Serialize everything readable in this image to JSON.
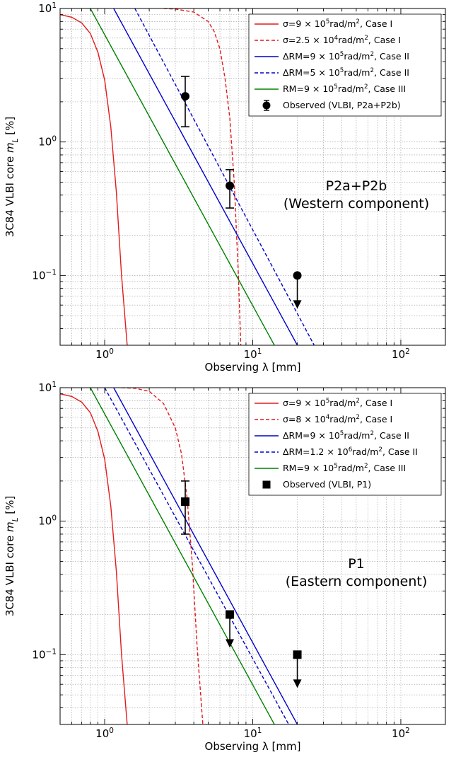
{
  "chart_data": [
    {
      "type": "line",
      "xlabel": "Observing λ [mm]",
      "ylabel": "3C84 VLBI core m_L [%]",
      "xscale": "log",
      "yscale": "log",
      "xlim": [
        0.5,
        200
      ],
      "ylim": [
        0.03,
        10
      ],
      "grid": true,
      "legend_position": "top-right",
      "x_ticks": [
        {
          "value": 1,
          "label": "10⁰"
        },
        {
          "value": 10,
          "label": "10¹"
        },
        {
          "value": 100,
          "label": "10²"
        }
      ],
      "y_ticks": [
        {
          "value": 0.1,
          "label": "10⁻¹"
        },
        {
          "value": 1,
          "label": "10⁰"
        },
        {
          "value": 10,
          "label": "10¹"
        }
      ],
      "annotation": [
        "P2a+P2b",
        "(Western component)"
      ],
      "series": [
        {
          "name": "σ=9 × 10⁵rad/m², Case I",
          "color": "#e41a1c",
          "dash": "solid",
          "x": [
            0.5,
            0.6,
            0.7,
            0.8,
            0.9,
            1.0,
            1.1,
            1.2,
            1.3,
            1.42
          ],
          "y": [
            9.0,
            8.6,
            7.8,
            6.5,
            4.7,
            2.9,
            1.3,
            0.42,
            0.1,
            0.03
          ]
        },
        {
          "name": "σ=2.5 × 10⁴rad/m², Case I",
          "color": "#e41a1c",
          "dash": "dashed",
          "x": [
            2.5,
            3.0,
            4.0,
            5.0,
            5.5,
            6.0,
            6.5,
            7.0,
            7.5,
            8.0,
            8.3
          ],
          "y": [
            10.0,
            9.9,
            9.4,
            8.0,
            6.7,
            5.0,
            3.0,
            1.5,
            0.5,
            0.1,
            0.03
          ]
        },
        {
          "name": "ΔRM=9 × 10⁵rad/m², Case II",
          "color": "#0000cc",
          "dash": "solid",
          "x": [
            1.15,
            20.0
          ],
          "y": [
            10.0,
            0.03
          ]
        },
        {
          "name": "ΔRM=5 × 10⁵rad/m², Case II",
          "color": "#0000cc",
          "dash": "dashed",
          "x": [
            1.6,
            26.0
          ],
          "y": [
            10.0,
            0.03
          ]
        },
        {
          "name": "RM=9 × 10⁵rad/m², Case III",
          "color": "#008000",
          "dash": "solid",
          "x": [
            0.8,
            14.0
          ],
          "y": [
            10.0,
            0.03
          ]
        }
      ],
      "observed": {
        "name": "Observed (VLBI, P2a+P2b)",
        "marker": "circle",
        "x": [
          3.5,
          7.0,
          20.0
        ],
        "y": [
          2.2,
          0.47,
          0.1
        ],
        "y_low": [
          1.3,
          0.32,
          null
        ],
        "y_high": [
          3.1,
          0.62,
          null
        ],
        "upper_limit": [
          false,
          false,
          true
        ]
      }
    },
    {
      "type": "line",
      "xlabel": "Observing λ [mm]",
      "ylabel": "3C84 VLBI core m_L [%]",
      "xscale": "log",
      "yscale": "log",
      "xlim": [
        0.5,
        200
      ],
      "ylim": [
        0.03,
        10
      ],
      "grid": true,
      "legend_position": "top-right",
      "x_ticks": [
        {
          "value": 1,
          "label": "10⁰"
        },
        {
          "value": 10,
          "label": "10¹"
        },
        {
          "value": 100,
          "label": "10²"
        }
      ],
      "y_ticks": [
        {
          "value": 0.1,
          "label": "10⁻¹"
        },
        {
          "value": 1,
          "label": "10⁰"
        },
        {
          "value": 10,
          "label": "10¹"
        }
      ],
      "annotation": [
        "P1",
        "(Eastern component)"
      ],
      "series": [
        {
          "name": "σ=9 × 10⁵rad/m², Case I",
          "color": "#e41a1c",
          "dash": "solid",
          "x": [
            0.5,
            0.6,
            0.7,
            0.8,
            0.9,
            1.0,
            1.1,
            1.2,
            1.3,
            1.42
          ],
          "y": [
            9.0,
            8.6,
            7.8,
            6.5,
            4.7,
            2.9,
            1.3,
            0.42,
            0.1,
            0.03
          ]
        },
        {
          "name": "σ=8 × 10⁴rad/m², Case I",
          "color": "#e41a1c",
          "dash": "dashed",
          "x": [
            1.3,
            1.6,
            2.0,
            2.5,
            3.0,
            3.3,
            3.6,
            3.9,
            4.2,
            4.6
          ],
          "y": [
            10.0,
            9.9,
            9.4,
            7.6,
            5.0,
            3.2,
            1.5,
            0.5,
            0.12,
            0.03
          ]
        },
        {
          "name": "ΔRM=9 × 10⁵rad/m², Case II",
          "color": "#0000cc",
          "dash": "solid",
          "x": [
            1.15,
            20.0
          ],
          "y": [
            10.0,
            0.03
          ]
        },
        {
          "name": "ΔRM=1.2 × 10⁶rad/m², Case II",
          "color": "#0000cc",
          "dash": "dashed",
          "x": [
            1.0,
            17.5
          ],
          "y": [
            10.0,
            0.03
          ]
        },
        {
          "name": "RM=9 × 10⁵rad/m², Case III",
          "color": "#008000",
          "dash": "solid",
          "x": [
            0.8,
            14.0
          ],
          "y": [
            10.0,
            0.03
          ]
        }
      ],
      "observed": {
        "name": "Observed (VLBI, P1)",
        "marker": "square",
        "x": [
          3.5,
          7.0,
          20.0
        ],
        "y": [
          1.4,
          0.2,
          0.1
        ],
        "y_low": [
          0.8,
          null,
          null
        ],
        "y_high": [
          2.0,
          null,
          null
        ],
        "upper_limit": [
          false,
          true,
          true
        ]
      }
    }
  ]
}
